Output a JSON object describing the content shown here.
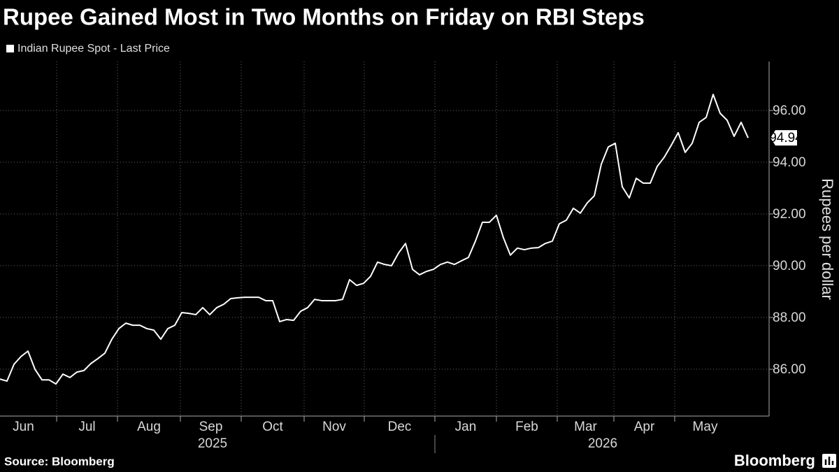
{
  "chart_data": {
    "type": "line",
    "title": "Rupee Gained Most in Two Months on Friday on RBI Steps",
    "y_label": "Rupees per dollar",
    "source": "Source: Bloomberg",
    "brand": "Bloomberg",
    "categories": [
      null,
      null,
      null,
      null,
      null,
      null,
      null,
      null,
      null,
      null,
      null,
      null,
      null,
      null,
      null,
      null,
      null,
      null,
      null,
      null,
      null,
      null,
      null,
      null,
      null,
      null,
      null,
      null,
      null,
      null,
      null,
      null,
      null,
      null,
      null,
      null,
      null,
      null,
      null,
      null,
      null,
      null,
      null,
      null,
      null,
      null,
      null,
      null,
      null,
      null,
      null,
      null,
      null,
      null,
      null,
      null,
      null,
      null,
      null,
      null,
      null,
      null,
      null,
      null,
      null,
      null,
      null,
      null,
      null,
      null,
      null,
      null,
      null,
      null,
      null,
      null,
      null,
      null,
      null,
      null,
      null,
      null,
      null,
      null,
      null,
      null,
      null,
      null,
      null,
      null,
      null,
      null,
      null,
      null,
      null,
      null,
      null,
      null,
      null,
      null,
      null,
      null,
      null,
      null,
      null,
      null,
      null,
      null
    ],
    "series": [
      {
        "name": "Indian Rupee Spot - Last Price",
        "color": "#ffffff",
        "values": [
          85.62,
          85.54,
          86.19,
          86.49,
          86.7,
          86.0,
          85.59,
          85.59,
          85.43,
          85.81,
          85.68,
          85.89,
          85.95,
          86.22,
          86.41,
          86.62,
          87.16,
          87.57,
          87.78,
          87.7,
          87.7,
          87.57,
          87.51,
          87.16,
          87.57,
          87.7,
          88.19,
          88.16,
          88.11,
          88.38,
          88.11,
          88.38,
          88.51,
          88.73,
          88.76,
          88.78,
          88.78,
          88.78,
          88.65,
          88.65,
          87.84,
          87.92,
          87.89,
          88.24,
          88.38,
          88.7,
          88.65,
          88.65,
          88.65,
          88.7,
          89.46,
          89.24,
          89.32,
          89.59,
          90.14,
          90.05,
          90.0,
          90.49,
          90.86,
          89.86,
          89.65,
          89.78,
          89.86,
          90.05,
          90.14,
          90.05,
          90.19,
          90.32,
          90.95,
          91.68,
          91.68,
          91.95,
          91.08,
          90.41,
          90.68,
          90.62,
          90.68,
          90.7,
          90.86,
          90.95,
          91.62,
          91.76,
          92.22,
          92.03,
          92.43,
          92.7,
          93.92,
          94.59,
          94.73,
          93.05,
          92.62,
          93.38,
          93.19,
          93.19,
          93.84,
          94.19,
          94.65,
          95.14,
          94.38,
          94.73,
          95.54,
          95.73,
          96.62,
          95.89,
          95.62,
          95.0,
          95.54,
          94.94
        ]
      }
    ],
    "xlim": [
      0,
      110
    ],
    "xticks": [
      {
        "value": -1.4,
        "label": "Jun"
      },
      {
        "value": 8.1,
        "label": "Jul"
      },
      {
        "value": 16.8,
        "label": "Aug"
      },
      {
        "value": 25.8,
        "label": "Sep"
      },
      {
        "value": 34.5,
        "label": "Oct"
      },
      {
        "value": 43.5,
        "label": "Nov"
      },
      {
        "value": 52.1,
        "label": "Dec"
      },
      {
        "value": 62.2,
        "label": "Jan"
      },
      {
        "value": 71,
        "label": "Feb"
      },
      {
        "value": 79.7,
        "label": "Mar"
      },
      {
        "value": 87.8,
        "label": "Apr"
      },
      {
        "value": 96.5,
        "label": "May"
      }
    ],
    "year_ticks": [
      {
        "value": 30.4,
        "label": "2025"
      },
      {
        "value": 86.2,
        "label": "2026"
      }
    ],
    "ylim": [
      84.19,
      97.89
    ],
    "yticks": [
      {
        "value": 86,
        "label": "86.00"
      },
      {
        "value": 88,
        "label": "88.00"
      },
      {
        "value": 90,
        "label": "90.00"
      },
      {
        "value": 92,
        "label": "92.00"
      },
      {
        "value": 94,
        "label": "94.00"
      },
      {
        "value": 96,
        "label": "96.00"
      }
    ],
    "grid": true
  }
}
